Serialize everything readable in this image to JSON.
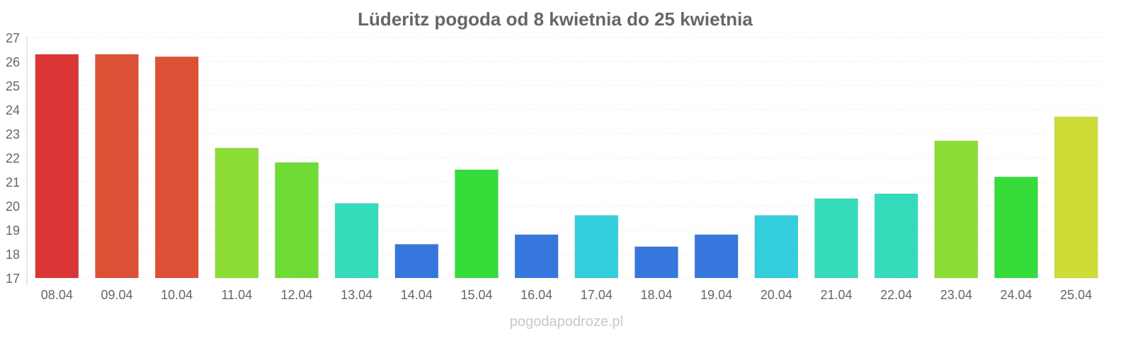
{
  "chart_data": {
    "type": "bar",
    "title": "Lüderitz pogoda od 8 kwietnia do 25 kwietnia",
    "xlabel": "",
    "ylabel": "",
    "ylim": [
      17,
      27
    ],
    "yticks": [
      17,
      18,
      19,
      20,
      21,
      22,
      23,
      24,
      25,
      26,
      27
    ],
    "grid": true,
    "categories": [
      "08.04",
      "09.04",
      "10.04",
      "11.04",
      "12.04",
      "13.04",
      "14.04",
      "15.04",
      "16.04",
      "17.04",
      "18.04",
      "19.04",
      "20.04",
      "21.04",
      "22.04",
      "23.04",
      "24.04",
      "25.04"
    ],
    "values": [
      26.3,
      26.3,
      26.2,
      22.4,
      21.8,
      20.1,
      18.4,
      21.5,
      18.8,
      19.6,
      18.3,
      18.8,
      19.6,
      20.3,
      20.5,
      22.7,
      21.2,
      23.7
    ],
    "colors": [
      "#db3535",
      "#dc5135",
      "#dc5135",
      "#8ddc35",
      "#6edc35",
      "#35dcbb",
      "#3577dc",
      "#35dc3a",
      "#3577dc",
      "#35cedc",
      "#3577dc",
      "#3577dc",
      "#35cedc",
      "#35dcbb",
      "#35dcbb",
      "#8ddc35",
      "#35dc3a",
      "#cedc35"
    ]
  },
  "watermark": "pogodapodroze.pl"
}
